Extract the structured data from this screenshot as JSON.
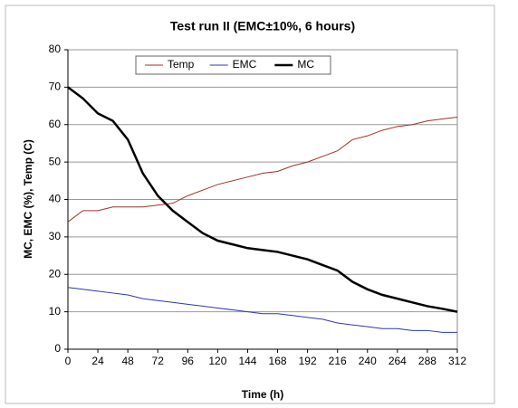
{
  "chart_data": {
    "type": "line",
    "title": "Test run II (EMC±10%, 6 hours)",
    "x_label": "Time (h)",
    "y_label": "MC, EMC (%), Temp (C)",
    "x": [
      0,
      12,
      24,
      36,
      48,
      60,
      72,
      84,
      96,
      108,
      120,
      132,
      144,
      156,
      168,
      180,
      192,
      204,
      216,
      228,
      240,
      252,
      264,
      276,
      288,
      300,
      312
    ],
    "series": [
      {
        "name": "Temp",
        "color": "#a0302a",
        "width": 1,
        "values": [
          34,
          37,
          37,
          38,
          38,
          38,
          38.5,
          39,
          41,
          42.5,
          44,
          45,
          46,
          47,
          47.5,
          49,
          50,
          51.5,
          53,
          56,
          57,
          58.5,
          59.5,
          60,
          61,
          61.5,
          62
        ]
      },
      {
        "name": "EMC",
        "color": "#2b3aa8",
        "width": 1,
        "values": [
          16.5,
          16,
          15.5,
          15,
          14.5,
          13.5,
          13,
          12.5,
          12,
          11.5,
          11,
          10.5,
          10,
          9.5,
          9.5,
          9,
          8.5,
          8,
          7,
          6.5,
          6,
          5.5,
          5.5,
          5,
          5,
          4.5,
          4.5
        ]
      },
      {
        "name": "MC",
        "color": "#000000",
        "width": 2.5,
        "values": [
          70,
          67,
          63,
          61,
          56,
          47,
          41,
          37,
          34,
          31,
          29,
          28,
          27,
          26.5,
          26,
          25,
          24,
          22.5,
          21,
          18,
          16,
          14.5,
          13.5,
          12.5,
          11.5,
          10.8,
          10
        ]
      }
    ],
    "xlim": [
      0,
      312
    ],
    "xticks": [
      0,
      24,
      48,
      72,
      96,
      120,
      144,
      168,
      192,
      216,
      240,
      264,
      288,
      312
    ],
    "ylim": [
      0,
      80
    ],
    "yticks": [
      0,
      10,
      20,
      30,
      40,
      50,
      60,
      70,
      80
    ],
    "grid": true,
    "legend": "top"
  }
}
